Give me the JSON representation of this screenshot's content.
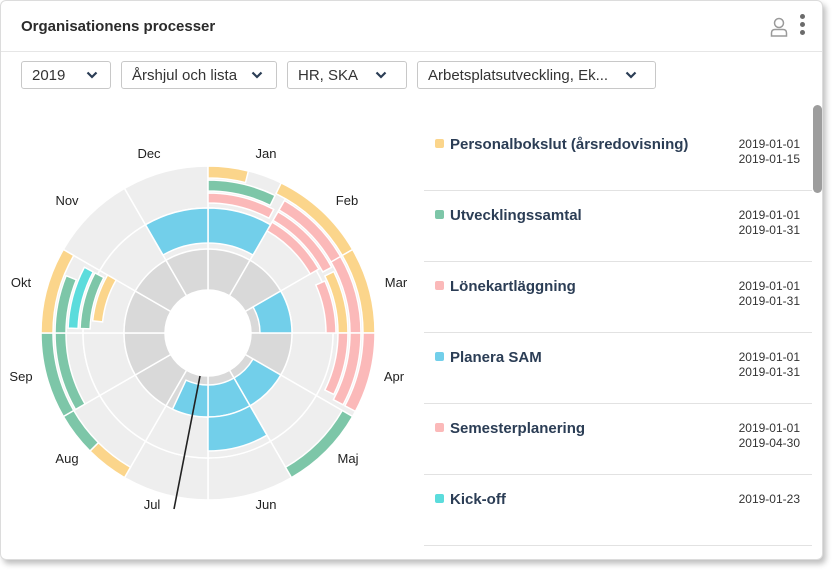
{
  "header": {
    "title": "Organisationens processer",
    "icons": [
      "user-icon",
      "kebab-menu-icon"
    ]
  },
  "filters": [
    {
      "value": "2019"
    },
    {
      "value": "Årshjul och lista"
    },
    {
      "value": "HR, SKA"
    },
    {
      "value": "Arbetsplatsutveckling, Ek..."
    }
  ],
  "colors": {
    "yellow": "#fbd58b",
    "green": "#7dc6a8",
    "pink": "#fbb9b9",
    "blue": "#72cfea",
    "cyan": "#5bdcdc",
    "ring_light": "#eeeeee",
    "ring_mid": "#d9d9d9"
  },
  "wheel": {
    "months": [
      "Jan",
      "Feb",
      "Mar",
      "Apr",
      "Maj",
      "Jun",
      "Jul",
      "Aug",
      "Sep",
      "Okt",
      "Nov",
      "Dec"
    ]
  },
  "list": {
    "items": [
      {
        "name": "Personalbokslut (årsredovisning)",
        "color": "#fbd58b",
        "start": "2019-01-01",
        "end": "2019-01-15"
      },
      {
        "name": "Utvecklingssamtal",
        "color": "#7dc6a8",
        "start": "2019-01-01",
        "end": "2019-01-31"
      },
      {
        "name": "Lönekartläggning",
        "color": "#fbb9b9",
        "start": "2019-01-01",
        "end": "2019-01-31"
      },
      {
        "name": "Planera SAM",
        "color": "#72cfea",
        "start": "2019-01-01",
        "end": "2019-01-31"
      },
      {
        "name": "Semesterplanering",
        "color": "#fbb9b9",
        "start": "2019-01-01",
        "end": "2019-04-30"
      },
      {
        "name": "Kick-off",
        "color": "#5bdcdc",
        "start": "2019-01-23",
        "end": ""
      }
    ]
  }
}
